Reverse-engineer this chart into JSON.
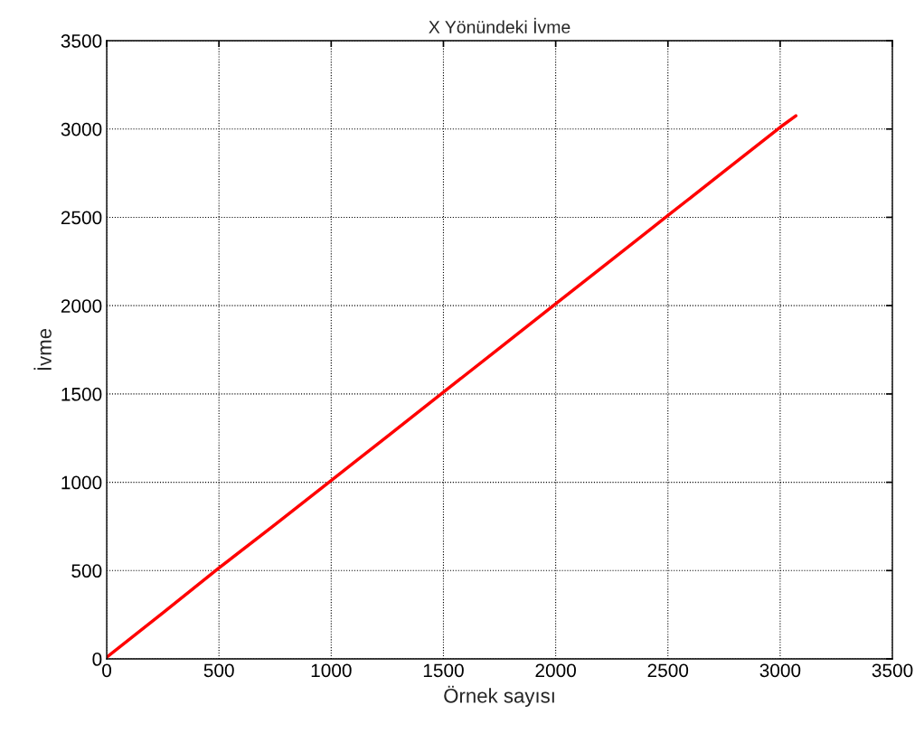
{
  "chart_data": {
    "type": "line",
    "title": "X Yönündeki İvme",
    "xlabel": "Örnek sayısı",
    "ylabel": "İvme",
    "x": [
      0,
      250,
      500,
      750,
      1000,
      1250,
      1500,
      1750,
      2000,
      2250,
      2500,
      2750,
      3000,
      3070
    ],
    "series": [
      {
        "color": "#ff0000",
        "values": [
          10,
          260,
          515,
          760,
          1010,
          1260,
          1510,
          1760,
          2010,
          2260,
          2510,
          2760,
          3010,
          3075
        ]
      }
    ],
    "xlim": [
      0,
      3500
    ],
    "ylim": [
      0,
      3500
    ],
    "xticks": [
      0,
      500,
      1000,
      1500,
      2000,
      2500,
      3000,
      3500
    ],
    "yticks": [
      0,
      500,
      1000,
      1500,
      2000,
      2500,
      3000,
      3500
    ],
    "grid": true,
    "marker": "none",
    "line_style": "solid",
    "legend": false
  }
}
